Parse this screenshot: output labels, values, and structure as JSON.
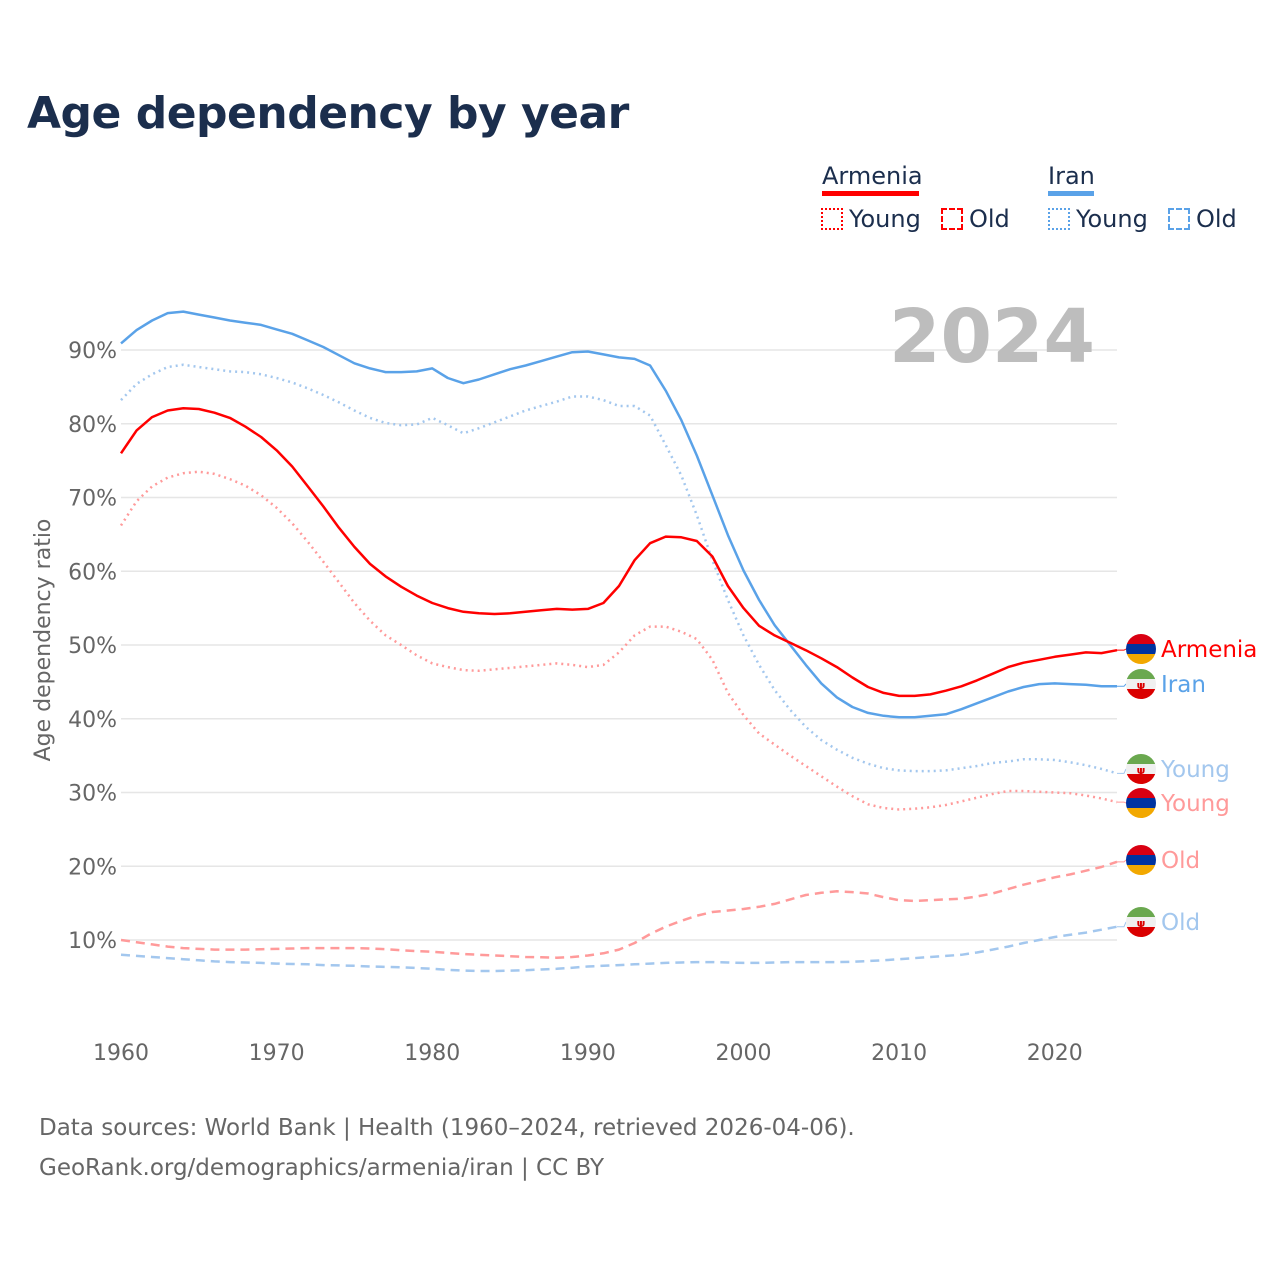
{
  "title": "Age dependency by year",
  "legend": {
    "countries": [
      {
        "name": "Armenia",
        "color": "#ff0000",
        "young": "Young",
        "old": "Old"
      },
      {
        "name": "Iran",
        "color": "#5aa2e8",
        "young": "Young",
        "old": "Old"
      }
    ]
  },
  "year_label": "2024",
  "source": {
    "line1": "Data sources: World Bank | Health (1960–2024, retrieved 2026-04-06).",
    "line2": "GeoRank.org/demographics/armenia/iran | CC BY"
  },
  "chart_data": {
    "type": "line",
    "title": "Age dependency by year",
    "xlabel": "",
    "ylabel": "Age dependency ratio",
    "xlim": [
      1960,
      2024
    ],
    "ylim": [
      0,
      100
    ],
    "x_ticks": [
      "1960",
      "1970",
      "1980",
      "1990",
      "2000",
      "2010",
      "2020"
    ],
    "x_tick_values": [
      1960,
      1970,
      1980,
      1990,
      2000,
      2010,
      2020
    ],
    "y_ticks": [
      "10%",
      "20%",
      "30%",
      "40%",
      "50%",
      "60%",
      "70%",
      "80%",
      "90%"
    ],
    "y_tick_values": [
      10,
      20,
      30,
      40,
      50,
      60,
      70,
      80,
      90
    ],
    "grid": true,
    "legend_position": "top-right",
    "x_start": 1960,
    "series": [
      {
        "name": "Armenia",
        "label": "Armenia",
        "country": "Armenia",
        "kind": "total",
        "color": "#ff0000",
        "style": "solid",
        "values": [
          76.0,
          79.1,
          80.9,
          81.8,
          82.1,
          82.0,
          81.5,
          80.8,
          79.6,
          78.2,
          76.4,
          74.2,
          71.5,
          68.8,
          65.9,
          63.3,
          61.0,
          59.3,
          57.9,
          56.7,
          55.7,
          55.0,
          54.5,
          54.3,
          54.2,
          54.3,
          54.5,
          54.7,
          54.9,
          54.8,
          54.9,
          55.7,
          58.0,
          61.5,
          63.8,
          64.7,
          64.6,
          64.1,
          62.0,
          58.0,
          55.0,
          52.6,
          51.3,
          50.3,
          49.3,
          48.2,
          47.0,
          45.6,
          44.3,
          43.5,
          43.1,
          43.1,
          43.3,
          43.8,
          44.4,
          45.2,
          46.1,
          47.0,
          47.6,
          48.0,
          48.4,
          48.7,
          49.0,
          48.9,
          49.3
        ]
      },
      {
        "name": "Iran",
        "label": "Iran",
        "country": "Iran",
        "kind": "total",
        "color": "#5aa2e8",
        "style": "solid",
        "values": [
          90.9,
          92.7,
          94.0,
          95.0,
          95.2,
          94.8,
          94.4,
          94.0,
          93.7,
          93.4,
          92.8,
          92.2,
          91.3,
          90.4,
          89.3,
          88.2,
          87.5,
          87.0,
          87.0,
          87.1,
          87.5,
          86.2,
          85.5,
          86.0,
          86.7,
          87.4,
          87.9,
          88.5,
          89.1,
          89.7,
          89.8,
          89.4,
          89.0,
          88.8,
          87.9,
          84.5,
          80.5,
          75.7,
          70.3,
          64.9,
          60.1,
          56.1,
          52.7,
          50.0,
          47.3,
          44.8,
          42.9,
          41.6,
          40.8,
          40.4,
          40.2,
          40.2,
          40.4,
          40.6,
          41.3,
          42.1,
          42.9,
          43.7,
          44.3,
          44.7,
          44.8,
          44.7,
          44.6,
          44.4,
          44.4
        ]
      },
      {
        "name": "Iran Young",
        "label": "Young",
        "country": "Iran",
        "kind": "young",
        "color": "#a3c7ee",
        "style": "dotted",
        "values": [
          83.2,
          85.4,
          86.7,
          87.7,
          88.0,
          87.7,
          87.4,
          87.1,
          87.0,
          86.7,
          86.2,
          85.6,
          84.8,
          83.9,
          82.9,
          81.8,
          80.8,
          80.1,
          79.8,
          79.9,
          80.8,
          79.8,
          78.7,
          79.4,
          80.2,
          81.0,
          81.8,
          82.4,
          83.0,
          83.7,
          83.7,
          83.2,
          82.4,
          82.4,
          81.1,
          77.1,
          73.0,
          67.6,
          61.5,
          56.1,
          51.3,
          47.3,
          43.9,
          41.2,
          38.9,
          37.1,
          35.8,
          34.7,
          33.9,
          33.3,
          33.0,
          32.9,
          32.9,
          33.0,
          33.3,
          33.6,
          34.0,
          34.2,
          34.5,
          34.5,
          34.4,
          34.1,
          33.7,
          33.2,
          32.6
        ]
      },
      {
        "name": "Armenia Young",
        "label": "Young",
        "country": "Armenia",
        "kind": "young",
        "color": "#ff9a9a",
        "style": "dotted",
        "values": [
          66.2,
          69.5,
          71.5,
          72.7,
          73.3,
          73.5,
          73.2,
          72.5,
          71.6,
          70.3,
          68.6,
          66.5,
          64.0,
          61.3,
          58.5,
          55.7,
          53.3,
          51.3,
          50.0,
          48.6,
          47.5,
          47.0,
          46.6,
          46.5,
          46.7,
          46.9,
          47.1,
          47.3,
          47.5,
          47.3,
          47.0,
          47.3,
          49.0,
          51.3,
          52.5,
          52.5,
          51.8,
          50.8,
          48.0,
          43.5,
          40.5,
          38.0,
          36.5,
          35.0,
          33.6,
          32.2,
          30.8,
          29.5,
          28.4,
          27.9,
          27.7,
          27.8,
          28.0,
          28.3,
          28.8,
          29.3,
          29.8,
          30.2,
          30.2,
          30.1,
          30.0,
          29.9,
          29.6,
          29.2,
          28.7
        ]
      },
      {
        "name": "Armenia Old",
        "label": "Old",
        "country": "Armenia",
        "kind": "old",
        "color": "#ff9a9a",
        "style": "dashed",
        "values": [
          10.0,
          9.7,
          9.4,
          9.1,
          8.9,
          8.8,
          8.7,
          8.7,
          8.7,
          8.75,
          8.8,
          8.85,
          8.9,
          8.9,
          8.9,
          8.9,
          8.85,
          8.75,
          8.6,
          8.5,
          8.4,
          8.25,
          8.1,
          8.0,
          7.9,
          7.8,
          7.7,
          7.65,
          7.6,
          7.7,
          7.9,
          8.2,
          8.7,
          9.6,
          10.8,
          11.8,
          12.6,
          13.3,
          13.8,
          14.0,
          14.2,
          14.5,
          14.9,
          15.5,
          16.1,
          16.4,
          16.6,
          16.5,
          16.3,
          15.8,
          15.4,
          15.3,
          15.4,
          15.5,
          15.6,
          15.9,
          16.3,
          16.9,
          17.5,
          18.0,
          18.5,
          18.9,
          19.4,
          19.9,
          20.6
        ]
      },
      {
        "name": "Iran Old",
        "label": "Old",
        "country": "Iran",
        "kind": "old",
        "color": "#a3c7ee",
        "style": "dashed",
        "values": [
          8.0,
          7.85,
          7.7,
          7.55,
          7.4,
          7.25,
          7.1,
          7.0,
          6.95,
          6.9,
          6.8,
          6.75,
          6.7,
          6.6,
          6.55,
          6.5,
          6.4,
          6.35,
          6.3,
          6.2,
          6.1,
          5.95,
          5.85,
          5.8,
          5.8,
          5.85,
          5.9,
          6.0,
          6.1,
          6.25,
          6.4,
          6.5,
          6.6,
          6.7,
          6.8,
          6.9,
          6.95,
          7.0,
          7.0,
          6.95,
          6.9,
          6.9,
          6.95,
          7.0,
          7.0,
          7.0,
          7.0,
          7.05,
          7.15,
          7.25,
          7.4,
          7.55,
          7.7,
          7.85,
          8.0,
          8.3,
          8.7,
          9.1,
          9.6,
          10.0,
          10.4,
          10.7,
          11.0,
          11.4,
          11.8
        ]
      }
    ]
  }
}
